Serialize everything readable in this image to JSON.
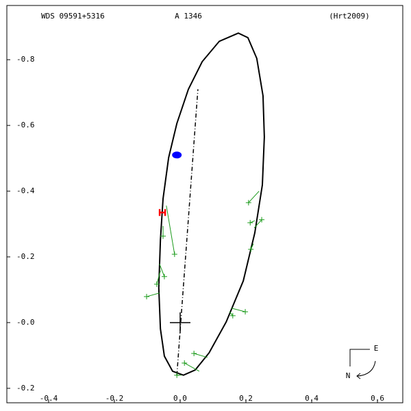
{
  "chart_data": {
    "type": "orbit",
    "header": {
      "left": "WDS 09591+5316",
      "center": "A  1346",
      "right": "(Hrt2009)"
    },
    "xlim": [
      -0.527,
      0.677
    ],
    "ylim": [
      -0.244,
      0.965
    ],
    "xticks": [
      -0.4,
      -0.2,
      {
        "value": 0.0,
        "label": "0.0"
      },
      0.2,
      0.4,
      0.6
    ],
    "yticks": [
      {
        "value": 0.8,
        "label": "-0.8"
      },
      {
        "value": 0.6,
        "label": "-0.6"
      },
      {
        "value": 0.4,
        "label": "-0.4"
      },
      {
        "value": 0.2,
        "label": "-0.2"
      },
      {
        "value": 0.0,
        "label": "-0.0"
      },
      {
        "value": -0.2,
        "label": "-0.2"
      }
    ],
    "orbit": {
      "color": "#000000",
      "x": [
        0.177,
        0.119,
        0.067,
        0.025,
        -0.01,
        -0.035,
        -0.052,
        -0.06,
        -0.065,
        -0.06,
        -0.048,
        -0.023,
        0.01,
        0.046,
        0.088,
        0.14,
        0.192,
        0.227,
        0.25,
        0.256,
        0.252,
        0.233,
        0.206
      ],
      "y": [
        0.881,
        0.856,
        0.794,
        0.71,
        0.606,
        0.502,
        0.377,
        0.252,
        0.106,
        -0.019,
        -0.102,
        -0.148,
        -0.16,
        -0.144,
        -0.092,
        0.002,
        0.127,
        0.273,
        0.419,
        0.565,
        0.69,
        0.804,
        0.867
      ]
    },
    "node_line": {
      "color": "#000000",
      "x": [
        -0.01,
        0.054
      ],
      "y": [
        -0.16,
        0.71
      ]
    },
    "observations": {
      "color": "#1a9a1a",
      "x": [
        0.208,
        0.248,
        0.213,
        0.215,
        -0.017,
        -0.052,
        -0.048,
        -0.071,
        -0.102,
        0.198,
        0.16,
        0.042,
        0.013,
        -0.01
      ],
      "y": [
        0.365,
        0.313,
        0.304,
        0.223,
        0.208,
        0.263,
        0.14,
        0.117,
        0.079,
        0.033,
        0.021,
        -0.094,
        -0.123,
        -0.16
      ],
      "pred_x": [
        0.24,
        0.225,
        0.227,
        0.223,
        -0.042,
        -0.052,
        -0.063,
        -0.06,
        -0.063,
        0.156,
        0.15,
        0.083,
        0.058,
        0.004
      ],
      "pred_y": [
        0.4,
        0.288,
        0.31,
        0.24,
        0.356,
        0.294,
        0.179,
        0.158,
        0.09,
        0.044,
        0.033,
        -0.106,
        -0.148,
        -0.16
      ]
    },
    "current": {
      "color": "#0000ff",
      "x": -0.01,
      "y": 0.51
    },
    "first_obs": {
      "color": "#ff0000",
      "x": -0.054,
      "y": 0.335
    },
    "primary": {
      "color": "#000000",
      "x": 0.0,
      "y": 0.0
    },
    "compass": {
      "east": "E",
      "north": "N"
    }
  }
}
